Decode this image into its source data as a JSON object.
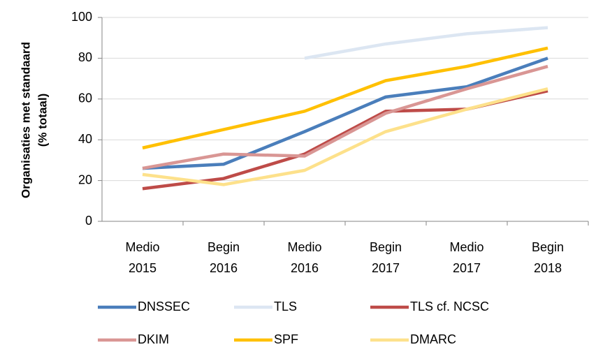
{
  "chart_data": {
    "type": "line",
    "ylabel": [
      "Organisaties met standaard",
      "(% totaal)"
    ],
    "categories": [
      "Medio 2015",
      "Begin 2016",
      "Medio 2016",
      "Begin 2017",
      "Medio 2017",
      "Begin 2018"
    ],
    "series": [
      {
        "name": "DNSSEC",
        "color": "#4a7ebb",
        "values": [
          26,
          28,
          44,
          61,
          66,
          80
        ]
      },
      {
        "name": "TLS",
        "color": "#dce6f2",
        "values": [
          null,
          null,
          80,
          87,
          92,
          95
        ]
      },
      {
        "name": "TLS cf. NCSC",
        "color": "#be4b48",
        "values": [
          16,
          21,
          33,
          54,
          55,
          64
        ]
      },
      {
        "name": "DKIM",
        "color": "#d99694",
        "values": [
          26,
          33,
          32,
          53,
          65,
          76
        ]
      },
      {
        "name": "SPF",
        "color": "#ffc000",
        "values": [
          36,
          45,
          54,
          69,
          76,
          85
        ]
      },
      {
        "name": "DMARC",
        "color": "#fde18b",
        "values": [
          23,
          18,
          25,
          44,
          55,
          65
        ]
      }
    ],
    "ylim": [
      0,
      100
    ],
    "yticks": [
      0,
      20,
      40,
      60,
      80,
      100
    ],
    "grid": true,
    "legend": "bottom"
  }
}
